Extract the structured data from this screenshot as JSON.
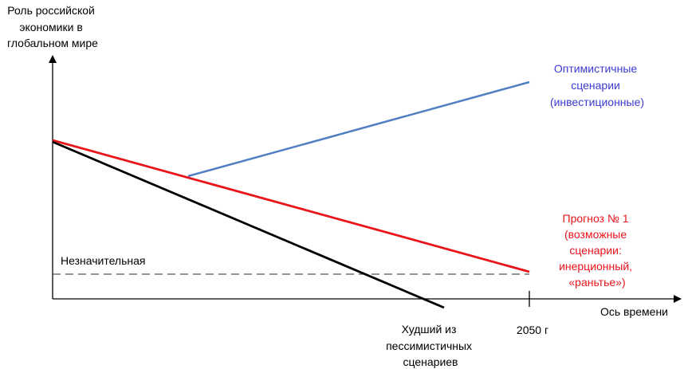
{
  "y_axis_title": [
    "Роль российской",
    "экономики в",
    "глобальном мире"
  ],
  "x_axis_title": "Ось времени",
  "x_tick_label": "2050 г",
  "threshold_label": "Незначительная",
  "scenarios": {
    "optimistic": {
      "label": [
        "Оптимистичные",
        "сценарии",
        "(инвестиционные)"
      ],
      "color": "#4f7ec2"
    },
    "forecast": {
      "label": [
        "Прогноз № 1",
        "(возможные",
        "сценарии:",
        "инерционный,",
        "«раньтье»)"
      ],
      "color": "#e8151b"
    },
    "worst": {
      "label": [
        "Худший из",
        "пессимистичных",
        "сценариев"
      ],
      "color": "#000000"
    }
  },
  "colors": {
    "axis": "#000000",
    "threshold": "#555555"
  }
}
